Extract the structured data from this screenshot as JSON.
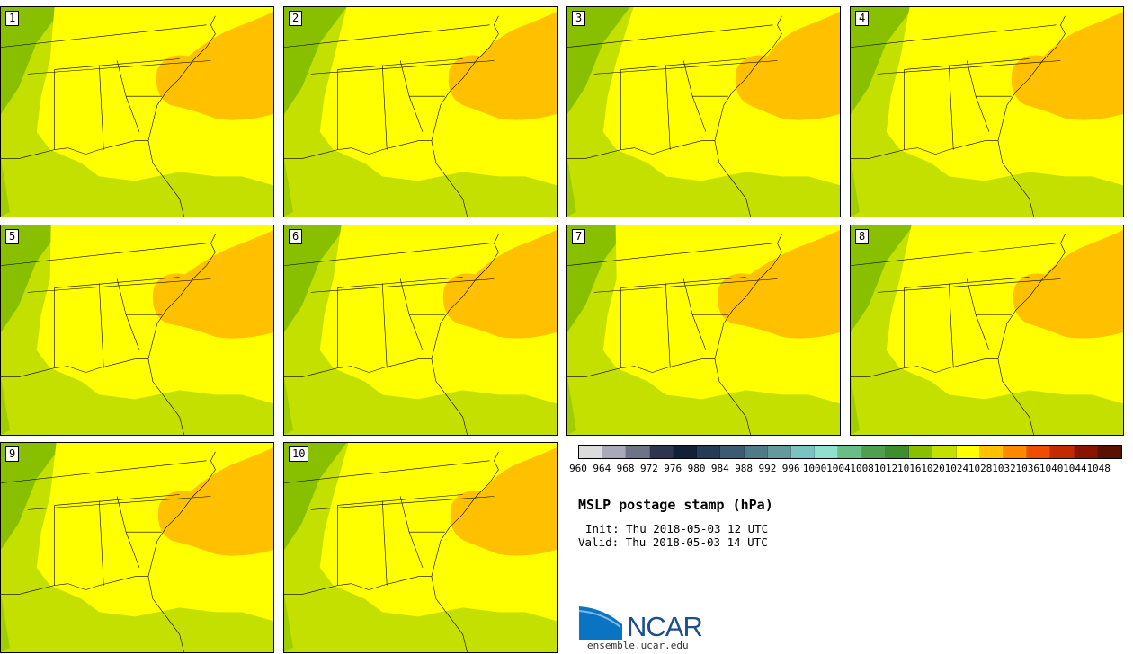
{
  "panels": [
    {
      "label": "1"
    },
    {
      "label": "2"
    },
    {
      "label": "3"
    },
    {
      "label": "4"
    },
    {
      "label": "5"
    },
    {
      "label": "6"
    },
    {
      "label": "7"
    },
    {
      "label": "8"
    },
    {
      "label": "9"
    },
    {
      "label": "10"
    }
  ],
  "colorbar": {
    "colors": [
      "#dcdcdc",
      "#a9a9b9",
      "#6e7387",
      "#2e3550",
      "#13203a",
      "#243c58",
      "#3b5a73",
      "#4f7a88",
      "#649a9e",
      "#7bc3c3",
      "#91dfcd",
      "#6bbd86",
      "#4e9f4f",
      "#3e8e2e",
      "#88c000",
      "#c3e000",
      "#ffff00",
      "#ffc000",
      "#ff8800",
      "#ef4e00",
      "#c42a00",
      "#8b1400",
      "#5a1200"
    ],
    "tick_labels": [
      "960",
      "964",
      "968",
      "972",
      "976",
      "980",
      "984",
      "988",
      "992",
      "996",
      "1000",
      "1004",
      "1008",
      "1012",
      "1016",
      "1020",
      "1024",
      "1028",
      "1032",
      "1036",
      "1040",
      "1044",
      "1048"
    ]
  },
  "title": "MSLP postage stamp (hPa)",
  "init": "Init: Thu 2018-05-03 12 UTC",
  "valid": "Valid: Thu 2018-05-03 14 UTC",
  "logo": {
    "text": "NCAR",
    "url": "ensemble.ucar.edu"
  },
  "colors": {
    "c1016": "#88c000",
    "c1020": "#c3e000",
    "c1024": "#ffff00",
    "c1028": "#ffc000"
  }
}
